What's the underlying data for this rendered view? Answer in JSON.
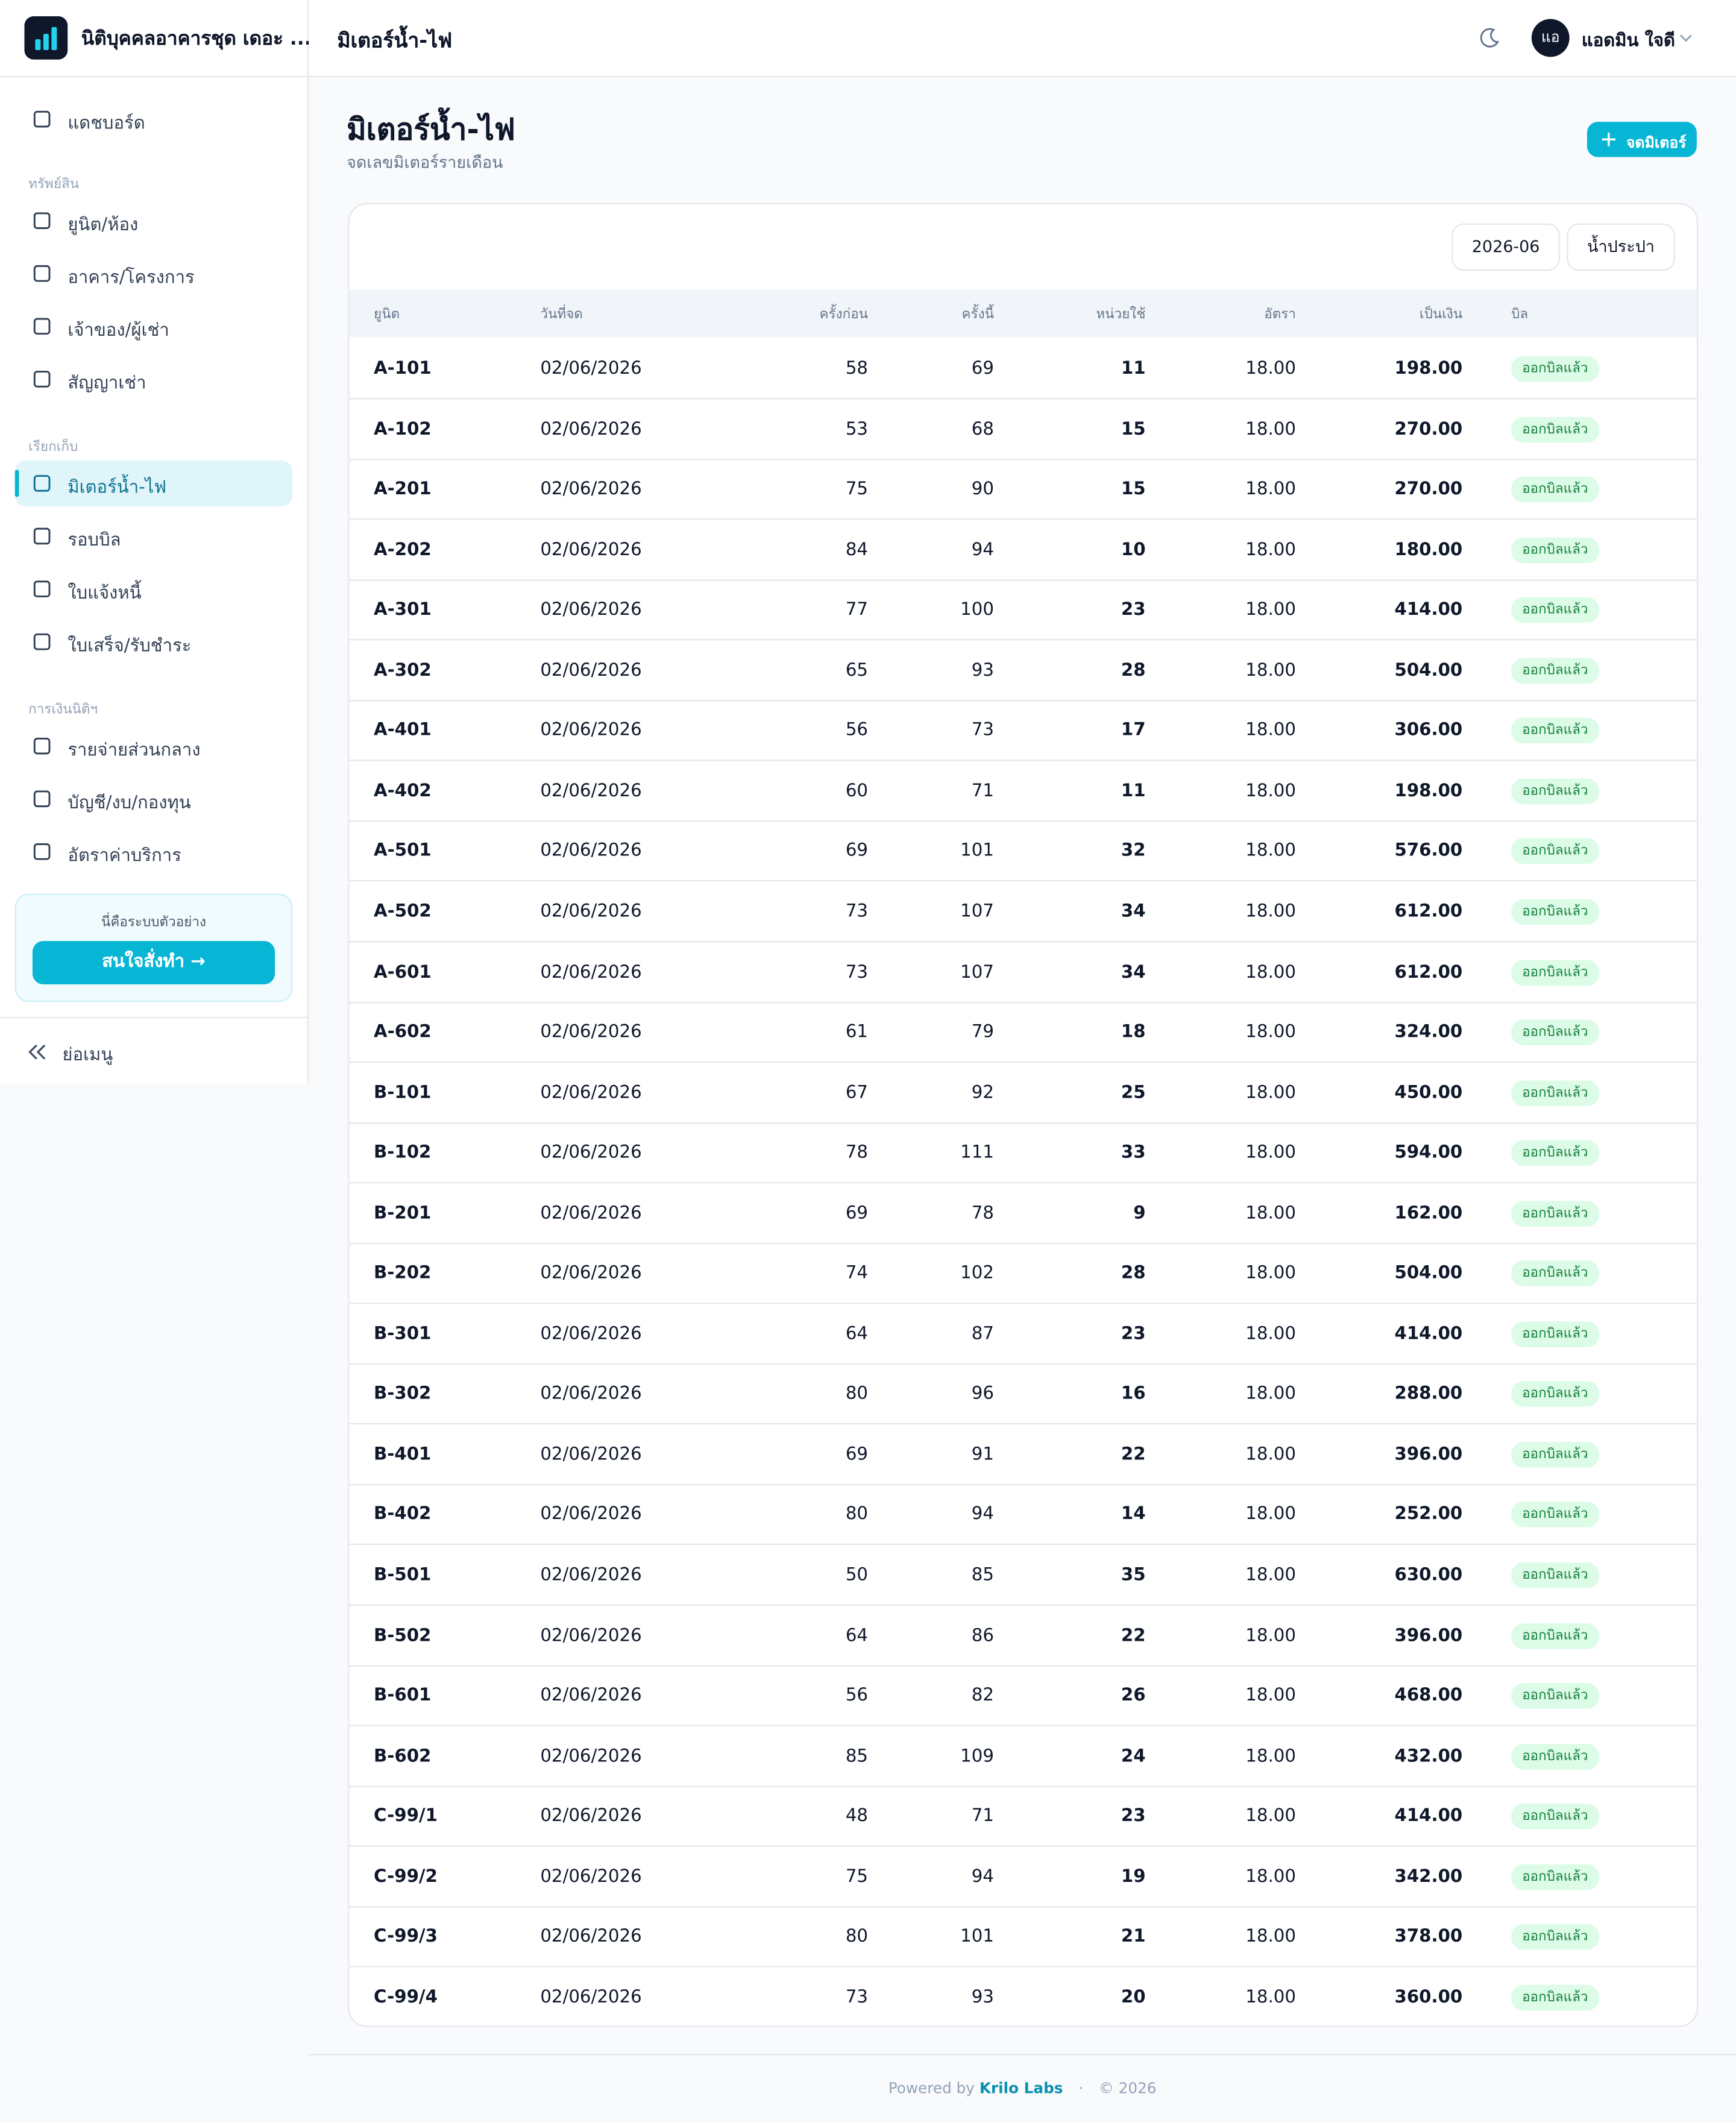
{
  "sidebar": {
    "brand": "นิติบุคคลอาคารชุด เดอะ ...",
    "top": [
      "แดชบอร์ด"
    ],
    "groups": [
      {
        "title": "ทรัพย์สิน",
        "items": [
          "ยูนิต/ห้อง",
          "อาคาร/โครงการ",
          "เจ้าของ/ผู้เช่า",
          "สัญญาเช่า"
        ]
      },
      {
        "title": "เรียกเก็บ",
        "items": [
          "มิเตอร์น้ำ-ไฟ",
          "รอบบิล",
          "ใบแจ้งหนี้",
          "ใบเสร็จ/รับชำระ"
        ]
      },
      {
        "title": "การเงินนิติฯ",
        "items": [
          "รายจ่ายส่วนกลาง",
          "บัญชี/งบ/กองทุน",
          "อัตราค่าบริการ"
        ]
      }
    ],
    "promo": {
      "text": "นี่คือระบบตัวอย่าง",
      "button": "สนใจสั่งทำ →"
    },
    "collapse": "ย่อเมนู"
  },
  "header": {
    "title": "มิเตอร์น้ำ-ไฟ",
    "avatar": "แอ",
    "user": "แอดมิน ใจดี"
  },
  "page": {
    "title": "มิเตอร์น้ำ-ไฟ",
    "subtitle": "จดเลขมิเตอร์รายเดือน",
    "button": "จดมิเตอร์"
  },
  "filters": [
    "2026-06",
    "น้ำประปา"
  ],
  "table": {
    "columns": [
      "ยูนิต",
      "วันที่จด",
      "ครั้งก่อน",
      "ครั้งนี้",
      "หน่วยใช้",
      "อัตรา",
      "เป็นเงิน",
      "บิล"
    ],
    "rows": [
      [
        "A-101",
        "02/06/2026",
        "58",
        "69",
        "11",
        "18.00",
        "198.00",
        "ออกบิลแล้ว"
      ],
      [
        "A-102",
        "02/06/2026",
        "53",
        "68",
        "15",
        "18.00",
        "270.00",
        "ออกบิลแล้ว"
      ],
      [
        "A-201",
        "02/06/2026",
        "75",
        "90",
        "15",
        "18.00",
        "270.00",
        "ออกบิลแล้ว"
      ],
      [
        "A-202",
        "02/06/2026",
        "84",
        "94",
        "10",
        "18.00",
        "180.00",
        "ออกบิลแล้ว"
      ],
      [
        "A-301",
        "02/06/2026",
        "77",
        "100",
        "23",
        "18.00",
        "414.00",
        "ออกบิลแล้ว"
      ],
      [
        "A-302",
        "02/06/2026",
        "65",
        "93",
        "28",
        "18.00",
        "504.00",
        "ออกบิลแล้ว"
      ],
      [
        "A-401",
        "02/06/2026",
        "56",
        "73",
        "17",
        "18.00",
        "306.00",
        "ออกบิลแล้ว"
      ],
      [
        "A-402",
        "02/06/2026",
        "60",
        "71",
        "11",
        "18.00",
        "198.00",
        "ออกบิลแล้ว"
      ],
      [
        "A-501",
        "02/06/2026",
        "69",
        "101",
        "32",
        "18.00",
        "576.00",
        "ออกบิลแล้ว"
      ],
      [
        "A-502",
        "02/06/2026",
        "73",
        "107",
        "34",
        "18.00",
        "612.00",
        "ออกบิลแล้ว"
      ],
      [
        "A-601",
        "02/06/2026",
        "73",
        "107",
        "34",
        "18.00",
        "612.00",
        "ออกบิลแล้ว"
      ],
      [
        "A-602",
        "02/06/2026",
        "61",
        "79",
        "18",
        "18.00",
        "324.00",
        "ออกบิลแล้ว"
      ],
      [
        "B-101",
        "02/06/2026",
        "67",
        "92",
        "25",
        "18.00",
        "450.00",
        "ออกบิลแล้ว"
      ],
      [
        "B-102",
        "02/06/2026",
        "78",
        "111",
        "33",
        "18.00",
        "594.00",
        "ออกบิลแล้ว"
      ],
      [
        "B-201",
        "02/06/2026",
        "69",
        "78",
        "9",
        "18.00",
        "162.00",
        "ออกบิลแล้ว"
      ],
      [
        "B-202",
        "02/06/2026",
        "74",
        "102",
        "28",
        "18.00",
        "504.00",
        "ออกบิลแล้ว"
      ],
      [
        "B-301",
        "02/06/2026",
        "64",
        "87",
        "23",
        "18.00",
        "414.00",
        "ออกบิลแล้ว"
      ],
      [
        "B-302",
        "02/06/2026",
        "80",
        "96",
        "16",
        "18.00",
        "288.00",
        "ออกบิลแล้ว"
      ],
      [
        "B-401",
        "02/06/2026",
        "69",
        "91",
        "22",
        "18.00",
        "396.00",
        "ออกบิลแล้ว"
      ],
      [
        "B-402",
        "02/06/2026",
        "80",
        "94",
        "14",
        "18.00",
        "252.00",
        "ออกบิลแล้ว"
      ],
      [
        "B-501",
        "02/06/2026",
        "50",
        "85",
        "35",
        "18.00",
        "630.00",
        "ออกบิลแล้ว"
      ],
      [
        "B-502",
        "02/06/2026",
        "64",
        "86",
        "22",
        "18.00",
        "396.00",
        "ออกบิลแล้ว"
      ],
      [
        "B-601",
        "02/06/2026",
        "56",
        "82",
        "26",
        "18.00",
        "468.00",
        "ออกบิลแล้ว"
      ],
      [
        "B-602",
        "02/06/2026",
        "85",
        "109",
        "24",
        "18.00",
        "432.00",
        "ออกบิลแล้ว"
      ],
      [
        "C-99/1",
        "02/06/2026",
        "48",
        "71",
        "23",
        "18.00",
        "414.00",
        "ออกบิลแล้ว"
      ],
      [
        "C-99/2",
        "02/06/2026",
        "75",
        "94",
        "19",
        "18.00",
        "342.00",
        "ออกบิลแล้ว"
      ],
      [
        "C-99/3",
        "02/06/2026",
        "80",
        "101",
        "21",
        "18.00",
        "378.00",
        "ออกบิลแล้ว"
      ],
      [
        "C-99/4",
        "02/06/2026",
        "73",
        "93",
        "20",
        "18.00",
        "360.00",
        "ออกบิลแล้ว"
      ]
    ]
  },
  "footer": {
    "prefix": "Powered by",
    "brand": "Krilo Labs",
    "year": "© 2026"
  }
}
